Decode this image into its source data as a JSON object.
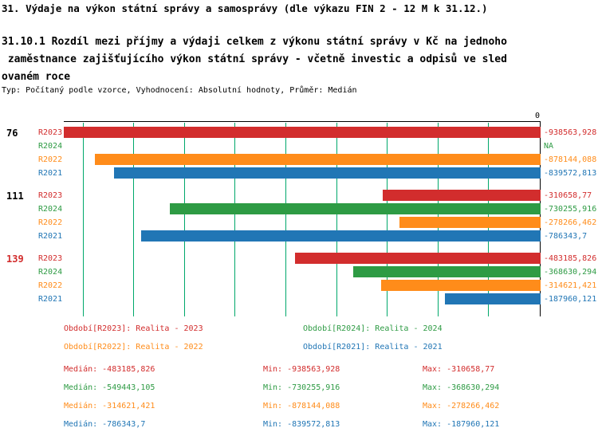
{
  "header": {
    "title": "31. Výdaje na výkon státní správy a samosprávy (dle výkazu FIN 2 - 12 M k 31.12.)",
    "subtitle": "31.10.1 Rozdíl mezi příjmy a výdaji celkem z výkonu státní správy v Kč na jednoho\n zaměstnance zajišťujícího výkon státní správy - včetně investic a odpisů ve sled\novaném roce",
    "meta": "Typ: Počítaný podle vzorce, Vyhodnocení: Absolutní hodnoty, Průměr: Medián"
  },
  "chart_data": {
    "type": "bar",
    "orientation": "horizontal",
    "title": "31.10.1 Rozdíl mezi příjmy a výdaji celkem z výkonu státní správy v Kč na jednoho zaměstnance",
    "axis": {
      "zero_label": "0",
      "min": -938563.928,
      "max": 0,
      "gridline_step": 100000,
      "grid": true
    },
    "series_colors": {
      "R2023": "#d22d2d",
      "R2024": "#2e9b44",
      "R2022": "#ff8c1a",
      "R2021": "#2176b5"
    },
    "gridline_color": "#00a86b",
    "groups": [
      {
        "label": "76",
        "label_color": "#000000",
        "bars": [
          {
            "series": "R2023",
            "value": -938563.928,
            "display": "-938563,928"
          },
          {
            "series": "R2024",
            "value": null,
            "display": "NA"
          },
          {
            "series": "R2022",
            "value": -878144.088,
            "display": "-878144,088"
          },
          {
            "series": "R2021",
            "value": -839572.813,
            "display": "-839572,813"
          }
        ]
      },
      {
        "label": "111",
        "label_color": "#000000",
        "bars": [
          {
            "series": "R2023",
            "value": -310658.77,
            "display": "-310658,77"
          },
          {
            "series": "R2024",
            "value": -730255.916,
            "display": "-730255,916"
          },
          {
            "series": "R2022",
            "value": -278266.462,
            "display": "-278266,462"
          },
          {
            "series": "R2021",
            "value": -786343.7,
            "display": "-786343,7"
          }
        ]
      },
      {
        "label": "139",
        "label_color": "#d22d2d",
        "bars": [
          {
            "series": "R2023",
            "value": -483185.826,
            "display": "-483185,826"
          },
          {
            "series": "R2024",
            "value": -368630.294,
            "display": "-368630,294"
          },
          {
            "series": "R2022",
            "value": -314621.421,
            "display": "-314621,421"
          },
          {
            "series": "R2021",
            "value": -187960.121,
            "display": "-187960,121"
          }
        ]
      }
    ],
    "legend": [
      {
        "series": "R2023",
        "label": "Období[R2023]: Realita - 2023"
      },
      {
        "series": "R2024",
        "label": "Období[R2024]: Realita - 2024"
      },
      {
        "series": "R2022",
        "label": "Období[R2022]: Realita - 2022"
      },
      {
        "series": "R2021",
        "label": "Období[R2021]: Realita - 2021"
      }
    ],
    "stats": [
      {
        "series": "R2023",
        "median": "Medián: -483185,826",
        "min": "Min: -938563,928",
        "max": "Max: -310658,77"
      },
      {
        "series": "R2024",
        "median": "Medián: -549443,105",
        "min": "Min: -730255,916",
        "max": "Max: -368630,294"
      },
      {
        "series": "R2022",
        "median": "Medián: -314621,421",
        "min": "Min: -878144,088",
        "max": "Max: -278266,462"
      },
      {
        "series": "R2021",
        "median": "Medián: -786343,7",
        "min": "Min: -839572,813",
        "max": "Max: -187960,121"
      }
    ]
  }
}
